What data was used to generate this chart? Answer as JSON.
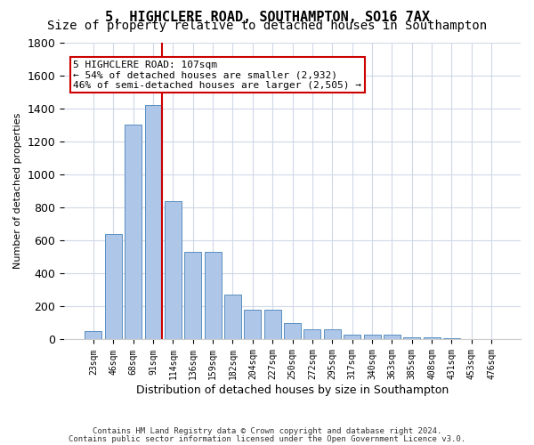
{
  "title1": "5, HIGHCLERE ROAD, SOUTHAMPTON, SO16 7AX",
  "title2": "Size of property relative to detached houses in Southampton",
  "xlabel": "Distribution of detached houses by size in Southampton",
  "ylabel": "Number of detached properties",
  "categories": [
    "23sqm",
    "46sqm",
    "68sqm",
    "91sqm",
    "114sqm",
    "136sqm",
    "159sqm",
    "182sqm",
    "204sqm",
    "227sqm",
    "250sqm",
    "272sqm",
    "295sqm",
    "317sqm",
    "340sqm",
    "363sqm",
    "385sqm",
    "408sqm",
    "431sqm",
    "453sqm",
    "476sqm"
  ],
  "values": [
    50,
    640,
    1300,
    1420,
    840,
    530,
    530,
    270,
    180,
    180,
    100,
    60,
    60,
    30,
    30,
    30,
    15,
    15,
    10,
    5,
    5
  ],
  "bar_color": "#aec6e8",
  "bar_edge_color": "#5a8fc0",
  "vline_color": "#cc0000",
  "annotation_box_color": "#cc0000",
  "annotation_text_line1": "5 HIGHCLERE ROAD: 107sqm",
  "annotation_text_line2": "← 54% of detached houses are smaller (2,932)",
  "annotation_text_line3": "46% of semi-detached houses are larger (2,505) →",
  "ylim": [
    0,
    1800
  ],
  "background_color": "#ffffff",
  "grid_color": "#d0d8e8",
  "footnote1": "Contains HM Land Registry data © Crown copyright and database right 2024.",
  "footnote2": "Contains public sector information licensed under the Open Government Licence v3.0.",
  "title1_fontsize": 11,
  "title2_fontsize": 10,
  "tick_fontsize": 7,
  "ylabel_fontsize": 8,
  "xlabel_fontsize": 9
}
